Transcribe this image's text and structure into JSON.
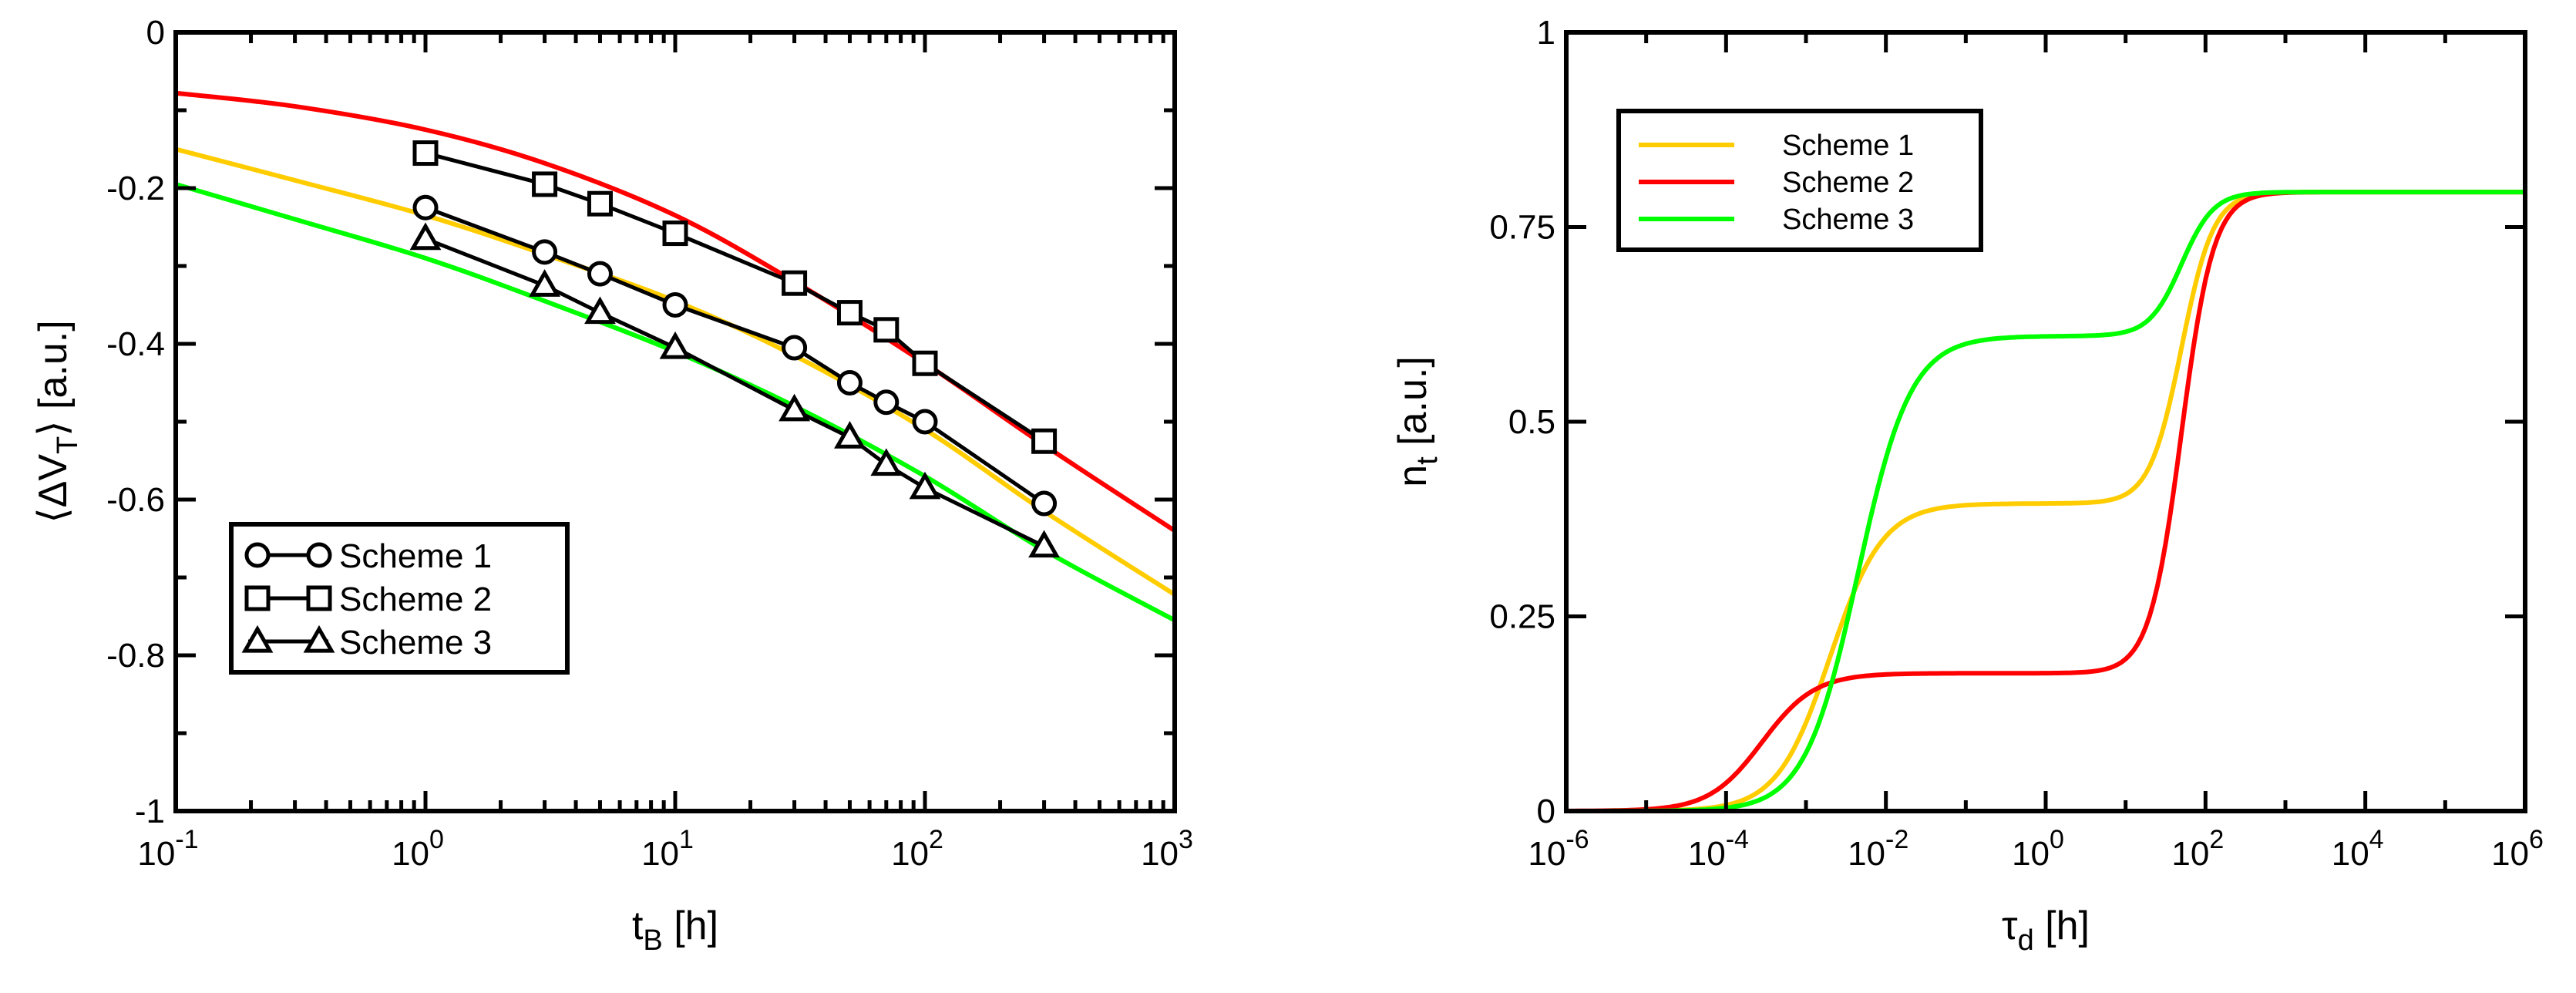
{
  "chart_data": [
    {
      "type": "line",
      "xscale": "log",
      "xlim": [
        0.1,
        1000
      ],
      "ylim": [
        -1,
        0
      ],
      "xticks": [
        {
          "base": "10",
          "exp": "-1"
        },
        {
          "base": "10",
          "exp": "0"
        },
        {
          "base": "10",
          "exp": "1"
        },
        {
          "base": "10",
          "exp": "2"
        },
        {
          "base": "10",
          "exp": "3"
        }
      ],
      "yticks": [
        "-1",
        "-0.8",
        "-0.6",
        "-0.4",
        "-0.2",
        "0"
      ],
      "ytick_values": [
        -1,
        -0.8,
        -0.6,
        -0.4,
        -0.2,
        0
      ],
      "xlabel": {
        "main": "t",
        "sub": "B",
        "unit": " [h]"
      },
      "ylabel": {
        "open": "⟨ΔV",
        "sub": "T",
        "close": "⟩ [a.u.]"
      },
      "legend_position": "bottom-left",
      "line_series": [
        {
          "color": "#ff0000",
          "x": [
            0.1,
            0.3,
            1,
            3,
            10,
            30,
            100,
            300,
            1000
          ],
          "y": [
            -0.078,
            -0.095,
            -0.125,
            -0.168,
            -0.235,
            -0.32,
            -0.425,
            -0.53,
            -0.64
          ]
        },
        {
          "color": "#ffcc00",
          "x": [
            0.1,
            0.3,
            1,
            3,
            10,
            30,
            100,
            300,
            1000
          ],
          "y": [
            -0.15,
            -0.19,
            -0.235,
            -0.285,
            -0.345,
            -0.415,
            -0.51,
            -0.615,
            -0.722
          ]
        },
        {
          "color": "#00ff00",
          "x": [
            0.1,
            0.3,
            1,
            3,
            10,
            30,
            100,
            300,
            1000
          ],
          "y": [
            -0.195,
            -0.24,
            -0.29,
            -0.345,
            -0.41,
            -0.48,
            -0.57,
            -0.665,
            -0.755
          ]
        }
      ],
      "marker_series": [
        {
          "name": "Scheme 1",
          "marker": "circle",
          "x": [
            1,
            3,
            5,
            10,
            30,
            50,
            70,
            100,
            300
          ],
          "y": [
            -0.225,
            -0.282,
            -0.31,
            -0.35,
            -0.405,
            -0.45,
            -0.475,
            -0.5,
            -0.605
          ]
        },
        {
          "name": "Scheme 2",
          "marker": "square",
          "x": [
            1,
            3,
            5,
            10,
            30,
            50,
            70,
            100,
            300
          ],
          "y": [
            -0.155,
            -0.195,
            -0.22,
            -0.258,
            -0.322,
            -0.36,
            -0.382,
            -0.425,
            -0.525
          ]
        },
        {
          "name": "Scheme 3",
          "marker": "triangle",
          "x": [
            1,
            3,
            5,
            10,
            30,
            50,
            70,
            100,
            300
          ],
          "y": [
            -0.265,
            -0.325,
            -0.36,
            -0.405,
            -0.485,
            -0.52,
            -0.555,
            -0.585,
            -0.66
          ]
        }
      ]
    },
    {
      "type": "line",
      "xscale": "log",
      "xlim": [
        1e-06,
        1000000
      ],
      "ylim": [
        0,
        1
      ],
      "xticks": [
        {
          "base": "10",
          "exp": "-6"
        },
        {
          "base": "10",
          "exp": "-4"
        },
        {
          "base": "10",
          "exp": "-2"
        },
        {
          "base": "10",
          "exp": "0"
        },
        {
          "base": "10",
          "exp": "2"
        },
        {
          "base": "10",
          "exp": "4"
        },
        {
          "base": "10",
          "exp": "6"
        }
      ],
      "yticks": [
        "0",
        "0.25",
        "0.5",
        "0.75",
        "1"
      ],
      "ytick_values": [
        0,
        0.25,
        0.5,
        0.75,
        1
      ],
      "xlabel": {
        "main": "τ",
        "sub": "d",
        "unit": " [h]"
      },
      "ylabel": {
        "main": "n",
        "sub": "t",
        "unit": " [a.u.]"
      },
      "legend_position": "top-left",
      "series": [
        {
          "name": "Scheme 1",
          "color": "#ffcc00",
          "steps": [
            {
              "amp": 0.395,
              "logc": -2.7,
              "w": 0.33
            },
            {
              "amp": 0.4,
              "logc": 1.7,
              "w": 0.2
            }
          ]
        },
        {
          "name": "Scheme 2",
          "color": "#ff0000",
          "steps": [
            {
              "amp": 0.177,
              "logc": -3.55,
              "w": 0.33
            },
            {
              "amp": 0.618,
              "logc": 1.7,
              "w": 0.2
            }
          ]
        },
        {
          "name": "Scheme 3",
          "color": "#00ff00",
          "steps": [
            {
              "amp": 0.61,
              "logc": -2.35,
              "w": 0.33
            },
            {
              "amp": 0.185,
              "logc": 1.7,
              "w": 0.2
            }
          ]
        }
      ]
    }
  ]
}
